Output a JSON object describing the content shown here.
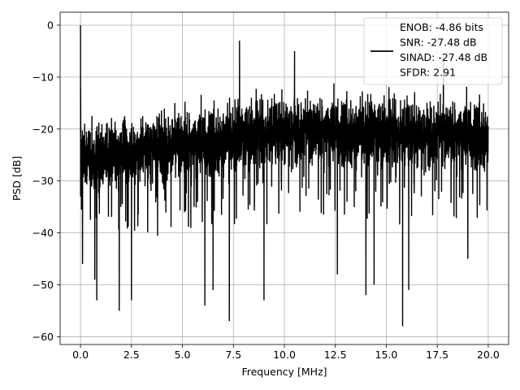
{
  "chart_data": {
    "type": "line",
    "title": "",
    "xlabel": "Frequency [MHz]",
    "ylabel": "PSD [dB]",
    "xlim": [
      -1.0,
      21.0
    ],
    "ylim": [
      -61.5,
      2.5
    ],
    "xticks": [
      0.0,
      2.5,
      5.0,
      7.5,
      10.0,
      12.5,
      15.0,
      17.5,
      20.0
    ],
    "xtick_labels": [
      "0.0",
      "2.5",
      "5.0",
      "7.5",
      "10.0",
      "12.5",
      "15.0",
      "17.5",
      "20.0"
    ],
    "yticks": [
      0,
      -10,
      -20,
      -30,
      -40,
      -50,
      -60
    ],
    "ytick_labels": [
      "0",
      "−10",
      "−20",
      "−30",
      "−40",
      "−50",
      "−60"
    ],
    "grid": true,
    "legend_position": "top-right",
    "line_color": "#000000",
    "series": [
      {
        "legend_lines": [
          "ENOB: -4.86 bits",
          "SNR: -27.48 dB",
          "SINAD: -27.48 dB",
          "SFDR: 2.91"
        ],
        "x_range": [
          0.0,
          20.0
        ],
        "dc_peak": 0.0,
        "noise_floor_at_start": -26,
        "noise_floor_at_end": -21,
        "noise_floor_mid": -20,
        "upper_envelope": -12,
        "notable_minima": [
          {
            "x": 0.1,
            "y": -46
          },
          {
            "x": 0.7,
            "y": -49
          },
          {
            "x": 0.8,
            "y": -53
          },
          {
            "x": 1.9,
            "y": -55
          },
          {
            "x": 2.5,
            "y": -53
          },
          {
            "x": 6.1,
            "y": -54
          },
          {
            "x": 6.5,
            "y": -51
          },
          {
            "x": 7.3,
            "y": -57
          },
          {
            "x": 9.0,
            "y": -53
          },
          {
            "x": 12.6,
            "y": -48
          },
          {
            "x": 14.0,
            "y": -52
          },
          {
            "x": 14.4,
            "y": -50
          },
          {
            "x": 15.8,
            "y": -58
          },
          {
            "x": 16.1,
            "y": -51
          },
          {
            "x": 19.0,
            "y": -45
          }
        ],
        "notable_maxima": [
          {
            "x": 7.8,
            "y": -3
          },
          {
            "x": 10.5,
            "y": -5
          },
          {
            "x": 17.8,
            "y": -6
          }
        ]
      }
    ]
  }
}
